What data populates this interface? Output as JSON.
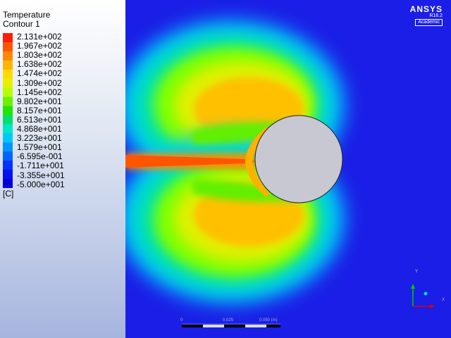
{
  "legend": {
    "title": "Temperature",
    "subtitle": "Contour 1",
    "unit": "[C]",
    "levels": [
      "2.131e+002",
      "1.967e+002",
      "1.803e+002",
      "1.638e+002",
      "1.474e+002",
      "1.309e+002",
      "1.145e+002",
      "9.802e+001",
      "8.157e+001",
      "6.513e+001",
      "4.868e+001",
      "3.223e+001",
      "1.579e+001",
      "-6.595e-001",
      "-1.711e+001",
      "-3.355e+001",
      "-5.000e+001"
    ],
    "colors": [
      "#ff1e00",
      "#ff5500",
      "#ff8800",
      "#ffb400",
      "#ffdc00",
      "#e8f000",
      "#b4ff00",
      "#6cf000",
      "#22e600",
      "#00e070",
      "#00e6c8",
      "#00c8ff",
      "#0096ff",
      "#0064ff",
      "#0032ff",
      "#0010f0",
      "#0000d8"
    ]
  },
  "branding": {
    "name": "ANSYS",
    "version": "R18.2",
    "edition": "Academic"
  },
  "axes": {
    "y_label": "Y",
    "z_label": "Z",
    "x_label": "X"
  },
  "scale_bar": {
    "labels": [
      "0",
      "0.025",
      "0.050 (m)"
    ]
  },
  "colors": {
    "background": "#1a1ee6",
    "solid": "#c8c8d2"
  }
}
